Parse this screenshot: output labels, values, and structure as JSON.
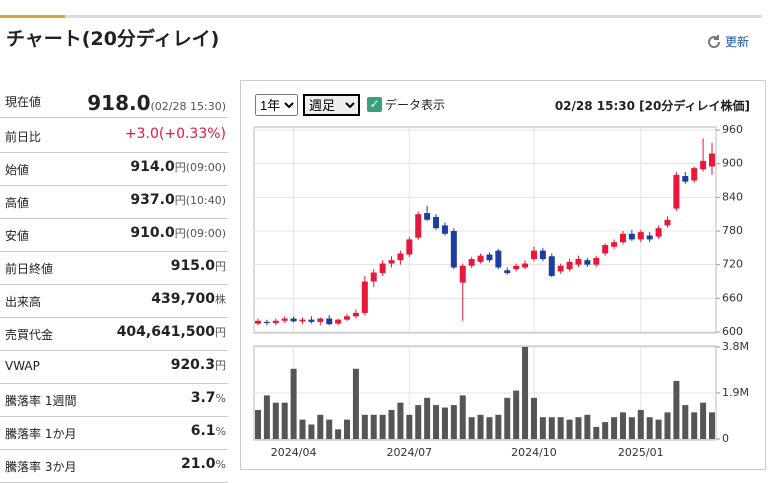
{
  "header": {
    "title": "チャート(20分ディレイ)",
    "refresh": "更新"
  },
  "quote_table": {
    "rows": [
      {
        "label": "現在値",
        "value": "918.0",
        "note": "(02/28 15:30)"
      },
      {
        "label": "前日比",
        "value": "+3.0(+0.33%)"
      },
      {
        "label": "始値",
        "value": "914.0",
        "unit": "円",
        "note": "(09:00)"
      },
      {
        "label": "高値",
        "value": "937.0",
        "unit": "円",
        "note": "(10:40)"
      },
      {
        "label": "安値",
        "value": "910.0",
        "unit": "円",
        "note": "(09:00)"
      },
      {
        "label": "前日終値",
        "value": "915.0",
        "unit": "円"
      },
      {
        "label": "出来高",
        "value": "439,700",
        "unit": "株"
      },
      {
        "label": "売買代金",
        "value": "404,641,500",
        "unit": "円"
      },
      {
        "label": "VWAP",
        "value": "920.3",
        "unit": "円"
      },
      {
        "label": "騰落率 1週間",
        "value": "3.7",
        "unit": "%"
      },
      {
        "label": "騰落率 1か月",
        "value": "6.1",
        "unit": "%"
      },
      {
        "label": "騰落率 3か月",
        "value": "21.0",
        "unit": "%"
      }
    ]
  },
  "controls": {
    "period": "1年",
    "interval": "週足",
    "show_data": "データ表示",
    "timestamp": "02/28 15:30 [20分ディレイ株価]"
  },
  "chart_data": [
    {
      "type": "candlestick",
      "up_color": "#e8173b",
      "down_color": "#1c3f9e",
      "categories": [
        null,
        null,
        null,
        null,
        "2024/04",
        null,
        null,
        null,
        null,
        null,
        null,
        null,
        null,
        null,
        null,
        null,
        null,
        "2024/07",
        null,
        null,
        null,
        null,
        null,
        null,
        null,
        null,
        null,
        null,
        null,
        null,
        null,
        "2024/10",
        null,
        null,
        null,
        null,
        null,
        null,
        null,
        null,
        null,
        null,
        null,
        "2025/01",
        null,
        null,
        null,
        null,
        null,
        null,
        null,
        null
      ],
      "open": [
        615,
        618,
        616,
        620,
        624,
        619,
        622,
        618,
        624,
        615,
        622,
        628,
        634,
        690,
        705,
        722,
        728,
        738,
        768,
        812,
        805,
        790,
        780,
        688,
        718,
        725,
        738,
        745,
        710,
        712,
        715,
        730,
        745,
        735,
        708,
        712,
        720,
        728,
        720,
        740,
        752,
        760,
        775,
        765,
        772,
        770,
        790,
        820,
        878,
        870,
        890,
        895
      ],
      "high": [
        624,
        622,
        624,
        628,
        628,
        626,
        628,
        626,
        630,
        624,
        632,
        640,
        700,
        712,
        728,
        735,
        745,
        770,
        815,
        825,
        810,
        795,
        785,
        722,
        734,
        740,
        742,
        748,
        715,
        722,
        728,
        752,
        750,
        740,
        722,
        730,
        736,
        732,
        736,
        758,
        765,
        780,
        782,
        782,
        778,
        790,
        806,
        885,
        885,
        895,
        945,
        937
      ],
      "low": [
        612,
        612,
        612,
        616,
        617,
        614,
        615,
        612,
        612,
        612,
        620,
        624,
        630,
        680,
        700,
        715,
        720,
        734,
        764,
        798,
        782,
        772,
        712,
        620,
        714,
        722,
        725,
        712,
        702,
        708,
        712,
        726,
        726,
        698,
        704,
        708,
        716,
        716,
        716,
        736,
        748,
        756,
        762,
        760,
        760,
        766,
        786,
        816,
        864,
        866,
        886,
        880
      ],
      "close": [
        620,
        616,
        620,
        624,
        619,
        622,
        618,
        624,
        614,
        622,
        628,
        634,
        690,
        706,
        722,
        728,
        740,
        765,
        810,
        800,
        785,
        775,
        715,
        718,
        730,
        736,
        728,
        715,
        705,
        718,
        722,
        745,
        730,
        700,
        718,
        725,
        730,
        720,
        732,
        755,
        760,
        775,
        765,
        778,
        765,
        785,
        800,
        880,
        868,
        892,
        905,
        918
      ],
      "ylim": [
        600,
        960
      ],
      "yticks": [
        600,
        660,
        720,
        780,
        840,
        900,
        960
      ],
      "grid": true
    },
    {
      "type": "bar",
      "color": "#555555",
      "values": [
        1200000,
        1800000,
        1500000,
        1500000,
        2900000,
        800000,
        600000,
        1000000,
        800000,
        400000,
        800000,
        2900000,
        1000000,
        1000000,
        1000000,
        1200000,
        1500000,
        1000000,
        1400000,
        1700000,
        1400000,
        1300000,
        1400000,
        1800000,
        900000,
        1000000,
        900000,
        1000000,
        1700000,
        2000000,
        3800000,
        1700000,
        900000,
        900000,
        900000,
        800000,
        900000,
        1000000,
        500000,
        700000,
        900000,
        1100000,
        900000,
        1200000,
        900000,
        800000,
        1100000,
        2400000,
        1400000,
        1100000,
        1500000,
        1100000
      ],
      "ylim": [
        0,
        3800000
      ],
      "yticks": [
        0,
        {
          "value": 1900000,
          "label": "1.9M"
        },
        {
          "value": 3800000,
          "label": "3.8M"
        }
      ],
      "grid": true
    }
  ]
}
